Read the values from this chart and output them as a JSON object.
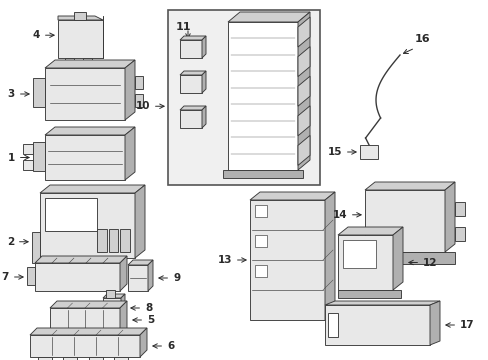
{
  "bg_color": "#ffffff",
  "line_color": "#3a3a3a",
  "figsize": [
    4.89,
    3.6
  ],
  "dpi": 100,
  "lw": 0.65,
  "gray_fill": "#e8e8e8",
  "light_gray": "#d0d0d0",
  "mid_gray": "#b0b0b0",
  "dark_gray": "#808080"
}
